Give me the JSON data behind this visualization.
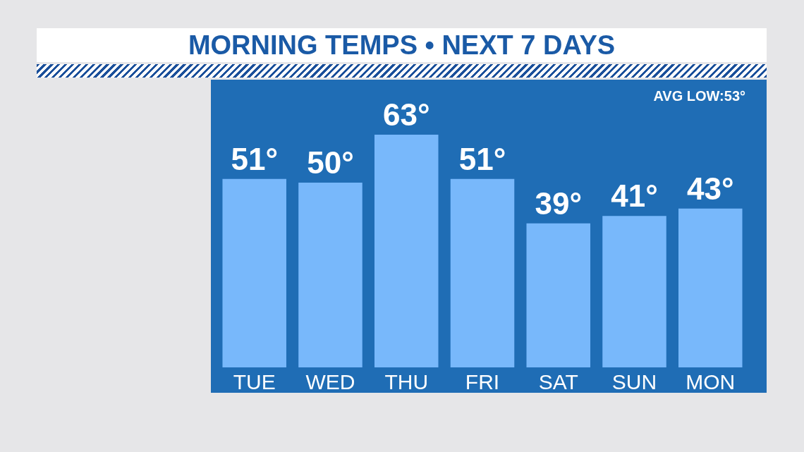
{
  "chart_data": {
    "type": "bar",
    "title": "MORNING TEMPS • NEXT 7 DAYS",
    "categories": [
      "TUE",
      "WED",
      "THU",
      "FRI",
      "SAT",
      "SUN",
      "MON"
    ],
    "values": [
      51,
      50,
      63,
      51,
      39,
      41,
      43
    ],
    "value_labels": [
      "51°",
      "50°",
      "63°",
      "51°",
      "39°",
      "41°",
      "43°"
    ],
    "color": "#78b8fb",
    "annotations": [
      "AVG LOW:53°"
    ]
  }
}
